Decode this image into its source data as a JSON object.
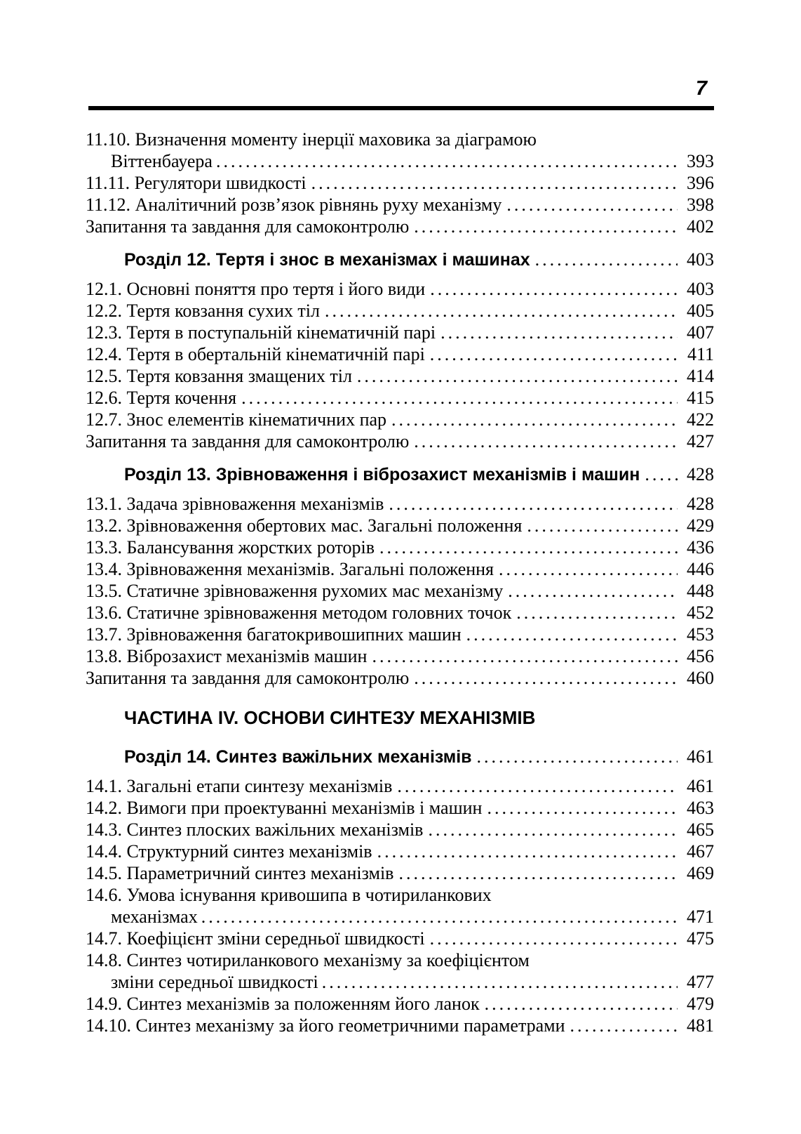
{
  "page": {
    "number": "7"
  },
  "colors": {
    "text": "#000000",
    "background": "#ffffff"
  },
  "toc": {
    "entries": [
      {
        "type": "item",
        "line1": "11.10. Визначення моменту інерції маховика за діаграмою",
        "line2": "Віттенбауера",
        "page": "393"
      },
      {
        "type": "item",
        "line1": "11.11. Регулятори швидкості",
        "page": "396"
      },
      {
        "type": "item",
        "line1": "11.12. Аналітичний розв’язок рівнянь руху механізму",
        "page": "398"
      },
      {
        "type": "questions",
        "line1": "Запитання та завдання для самоконтролю",
        "page": "402"
      },
      {
        "type": "chapter",
        "line1": "Розділ 12. Тертя і знос в механізмах і машинах",
        "page": "403"
      },
      {
        "type": "item",
        "line1": "12.1. Основні поняття про тертя і його види",
        "page": "403"
      },
      {
        "type": "item",
        "line1": "12.2. Тертя ковзання сухих тіл",
        "page": "405"
      },
      {
        "type": "item",
        "line1": "12.3. Тертя в поступальній кінематичній парі",
        "page": "407"
      },
      {
        "type": "item",
        "line1": "12.4. Тертя в обертальній кінематичній парі",
        "page": "411"
      },
      {
        "type": "item",
        "line1": "12.5. Тертя ковзання змащених тіл",
        "page": "414"
      },
      {
        "type": "item",
        "line1": "12.6. Тертя кочення",
        "page": "415"
      },
      {
        "type": "item",
        "line1": "12.7. Знос елементів кінематичних пар",
        "page": "422"
      },
      {
        "type": "questions",
        "line1": "Запитання та завдання для самоконтролю",
        "page": "427"
      },
      {
        "type": "chapter",
        "line1": "Розділ 13. Зрівноваження і віброзахист механізмів і машин",
        "page": "428"
      },
      {
        "type": "item",
        "line1": "13.1. Задача зрівноваження механізмів",
        "page": "428"
      },
      {
        "type": "item",
        "line1": "13.2. Зрівноваження обертових мас. Загальні положення",
        "page": "429"
      },
      {
        "type": "item",
        "line1": "13.3. Балансування жорстких роторів",
        "page": "436"
      },
      {
        "type": "item",
        "line1": "13.4. Зрівноваження механізмів. Загальні положення",
        "page": "446"
      },
      {
        "type": "item",
        "line1": "13.5. Статичне зрівноваження рухомих мас механізму",
        "page": "448"
      },
      {
        "type": "item",
        "line1": "13.6. Статичне зрівноваження методом головних точок",
        "page": "452"
      },
      {
        "type": "item",
        "line1": "13.7. Зрівноваження багатокривошипних машин",
        "page": "453"
      },
      {
        "type": "item",
        "line1": "13.8. Віброзахист механізмів машин",
        "page": "456"
      },
      {
        "type": "questions",
        "line1": "Запитання та завдання для самоконтролю",
        "page": "460"
      },
      {
        "type": "part",
        "line1": "ЧАСТИНА IV. ОСНОВИ СИНТЕЗУ МЕХАНІЗМІВ"
      },
      {
        "type": "chapter",
        "line1": "Розділ 14. Синтез важільних механізмів",
        "page": "461"
      },
      {
        "type": "item",
        "line1": "14.1. Загальні етапи синтезу механізмів",
        "page": "461"
      },
      {
        "type": "item",
        "line1": "14.2. Вимоги при проектуванні механізмів і машин",
        "page": "463"
      },
      {
        "type": "item",
        "line1": "14.3. Синтез плоских важільних механізмів",
        "page": "465"
      },
      {
        "type": "item",
        "line1": "14.4. Структурний синтез механізмів",
        "page": "467"
      },
      {
        "type": "item",
        "line1": "14.5. Параметричний синтез механізмів",
        "page": "469"
      },
      {
        "type": "item",
        "line1": "14.6. Умова існування кривошипа в чотириланкових",
        "line2": "механізмах",
        "page": "471"
      },
      {
        "type": "item",
        "line1": "14.7. Коефіцієнт зміни середньої швидкості",
        "page": "475"
      },
      {
        "type": "item",
        "line1": "14.8. Синтез чотириланкового механізму за коефіцієнтом",
        "line2": "зміни середньої швидкості",
        "page": "477"
      },
      {
        "type": "item",
        "line1": "14.9. Синтез механізмів за положенням його ланок",
        "page": "479"
      },
      {
        "type": "item",
        "line1": "14.10. Синтез механізму за його геометричними параметрами",
        "page": "481"
      }
    ]
  }
}
